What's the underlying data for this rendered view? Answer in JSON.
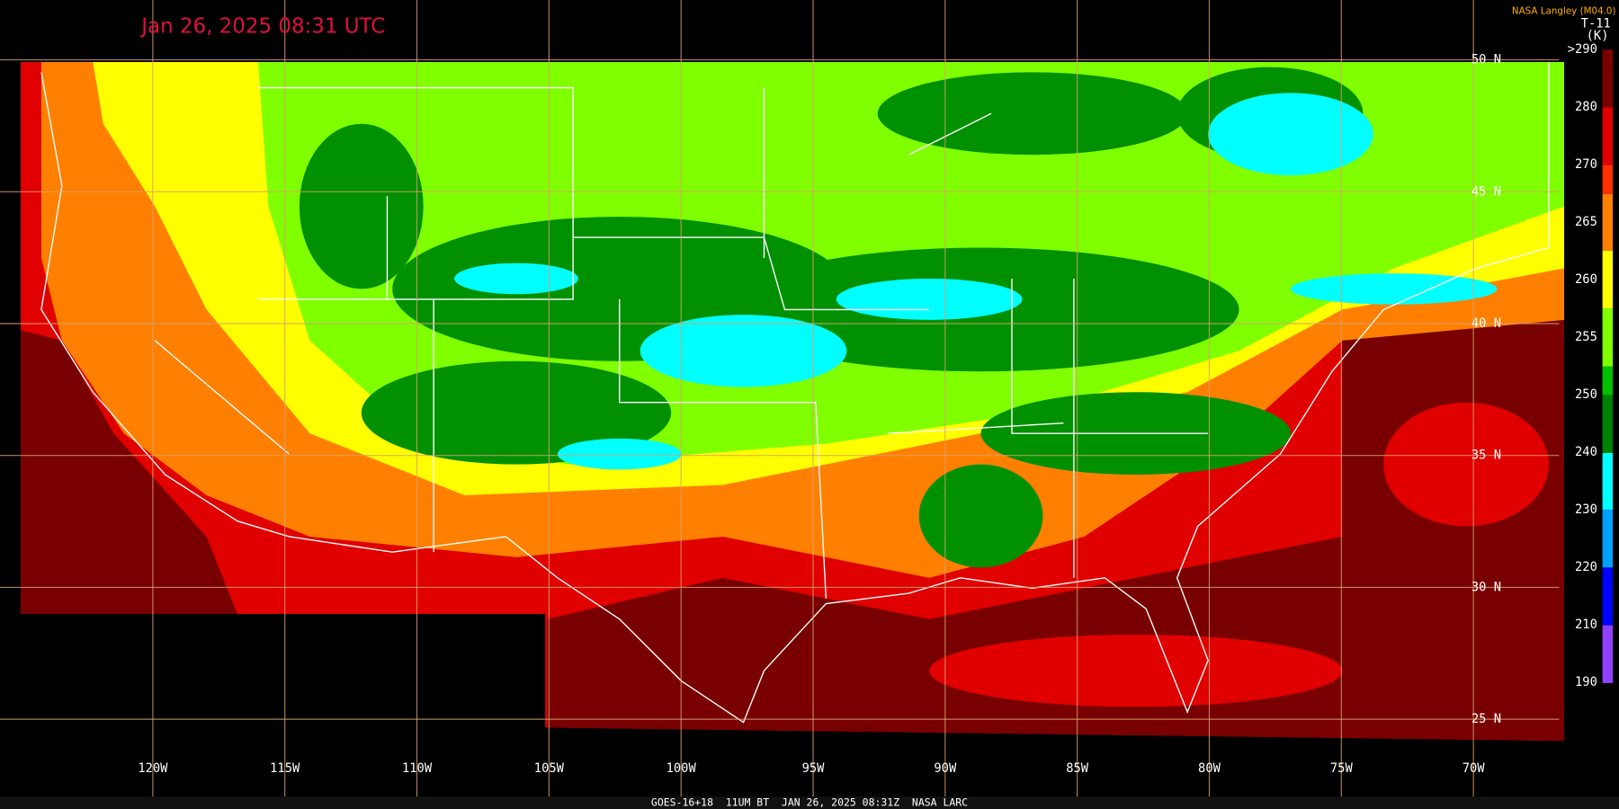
{
  "header": {
    "timestamp": "Jan 26, 2025 08:31 UTC",
    "credit": "NASA Langley (M04.0)"
  },
  "legend": {
    "title": "T-11",
    "unit": "(K)",
    "labels": [
      ">290",
      "280",
      "270",
      "265",
      "260",
      "255",
      "250",
      "240",
      "230",
      "220",
      "210",
      "190"
    ]
  },
  "longitudes": [
    "120W",
    "115W",
    "110W",
    "105W",
    "100W",
    "95W",
    "90W",
    "85W",
    "80W",
    "75W",
    "70W"
  ],
  "latitudes": [
    "50 N",
    "45 N",
    "40 N",
    "35 N",
    "30 N",
    "25 N"
  ],
  "footer": "GOES-16+18  11UM BT  JAN 26, 2025 08:31Z  NASA LARC"
}
